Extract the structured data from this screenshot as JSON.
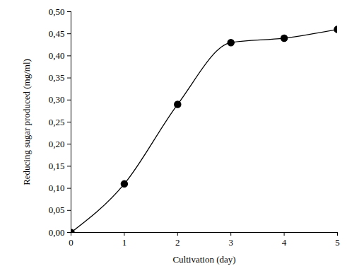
{
  "chart_data": {
    "type": "line",
    "x_label": "Cultivation (day)",
    "y_label": "Reducing sugar produced (mg/ml)",
    "x": [
      0,
      1,
      2,
      3,
      4,
      5
    ],
    "values": [
      0.0,
      0.11,
      0.29,
      0.43,
      0.44,
      0.46
    ],
    "color": "#000000",
    "marker": "circle",
    "line_style": "solid",
    "xlim": [
      0,
      5
    ],
    "xticks": [
      0,
      1,
      2,
      3,
      4,
      5
    ],
    "ylim": [
      0,
      0.5
    ],
    "yticks": [
      {
        "value": 0,
        "label": "0,00"
      },
      {
        "value": 0.05,
        "label": "0,05"
      },
      {
        "value": 0.1,
        "label": "0,10"
      },
      {
        "value": 0.15,
        "label": "0,15"
      },
      {
        "value": 0.2,
        "label": "0,20"
      },
      {
        "value": 0.25,
        "label": "0,25"
      },
      {
        "value": 0.3,
        "label": "0,30"
      },
      {
        "value": 0.35,
        "label": "0,35"
      },
      {
        "value": 0.4,
        "label": "0,40"
      },
      {
        "value": 0.45,
        "label": "0,45"
      },
      {
        "value": 0.5,
        "label": "0,50"
      }
    ]
  }
}
